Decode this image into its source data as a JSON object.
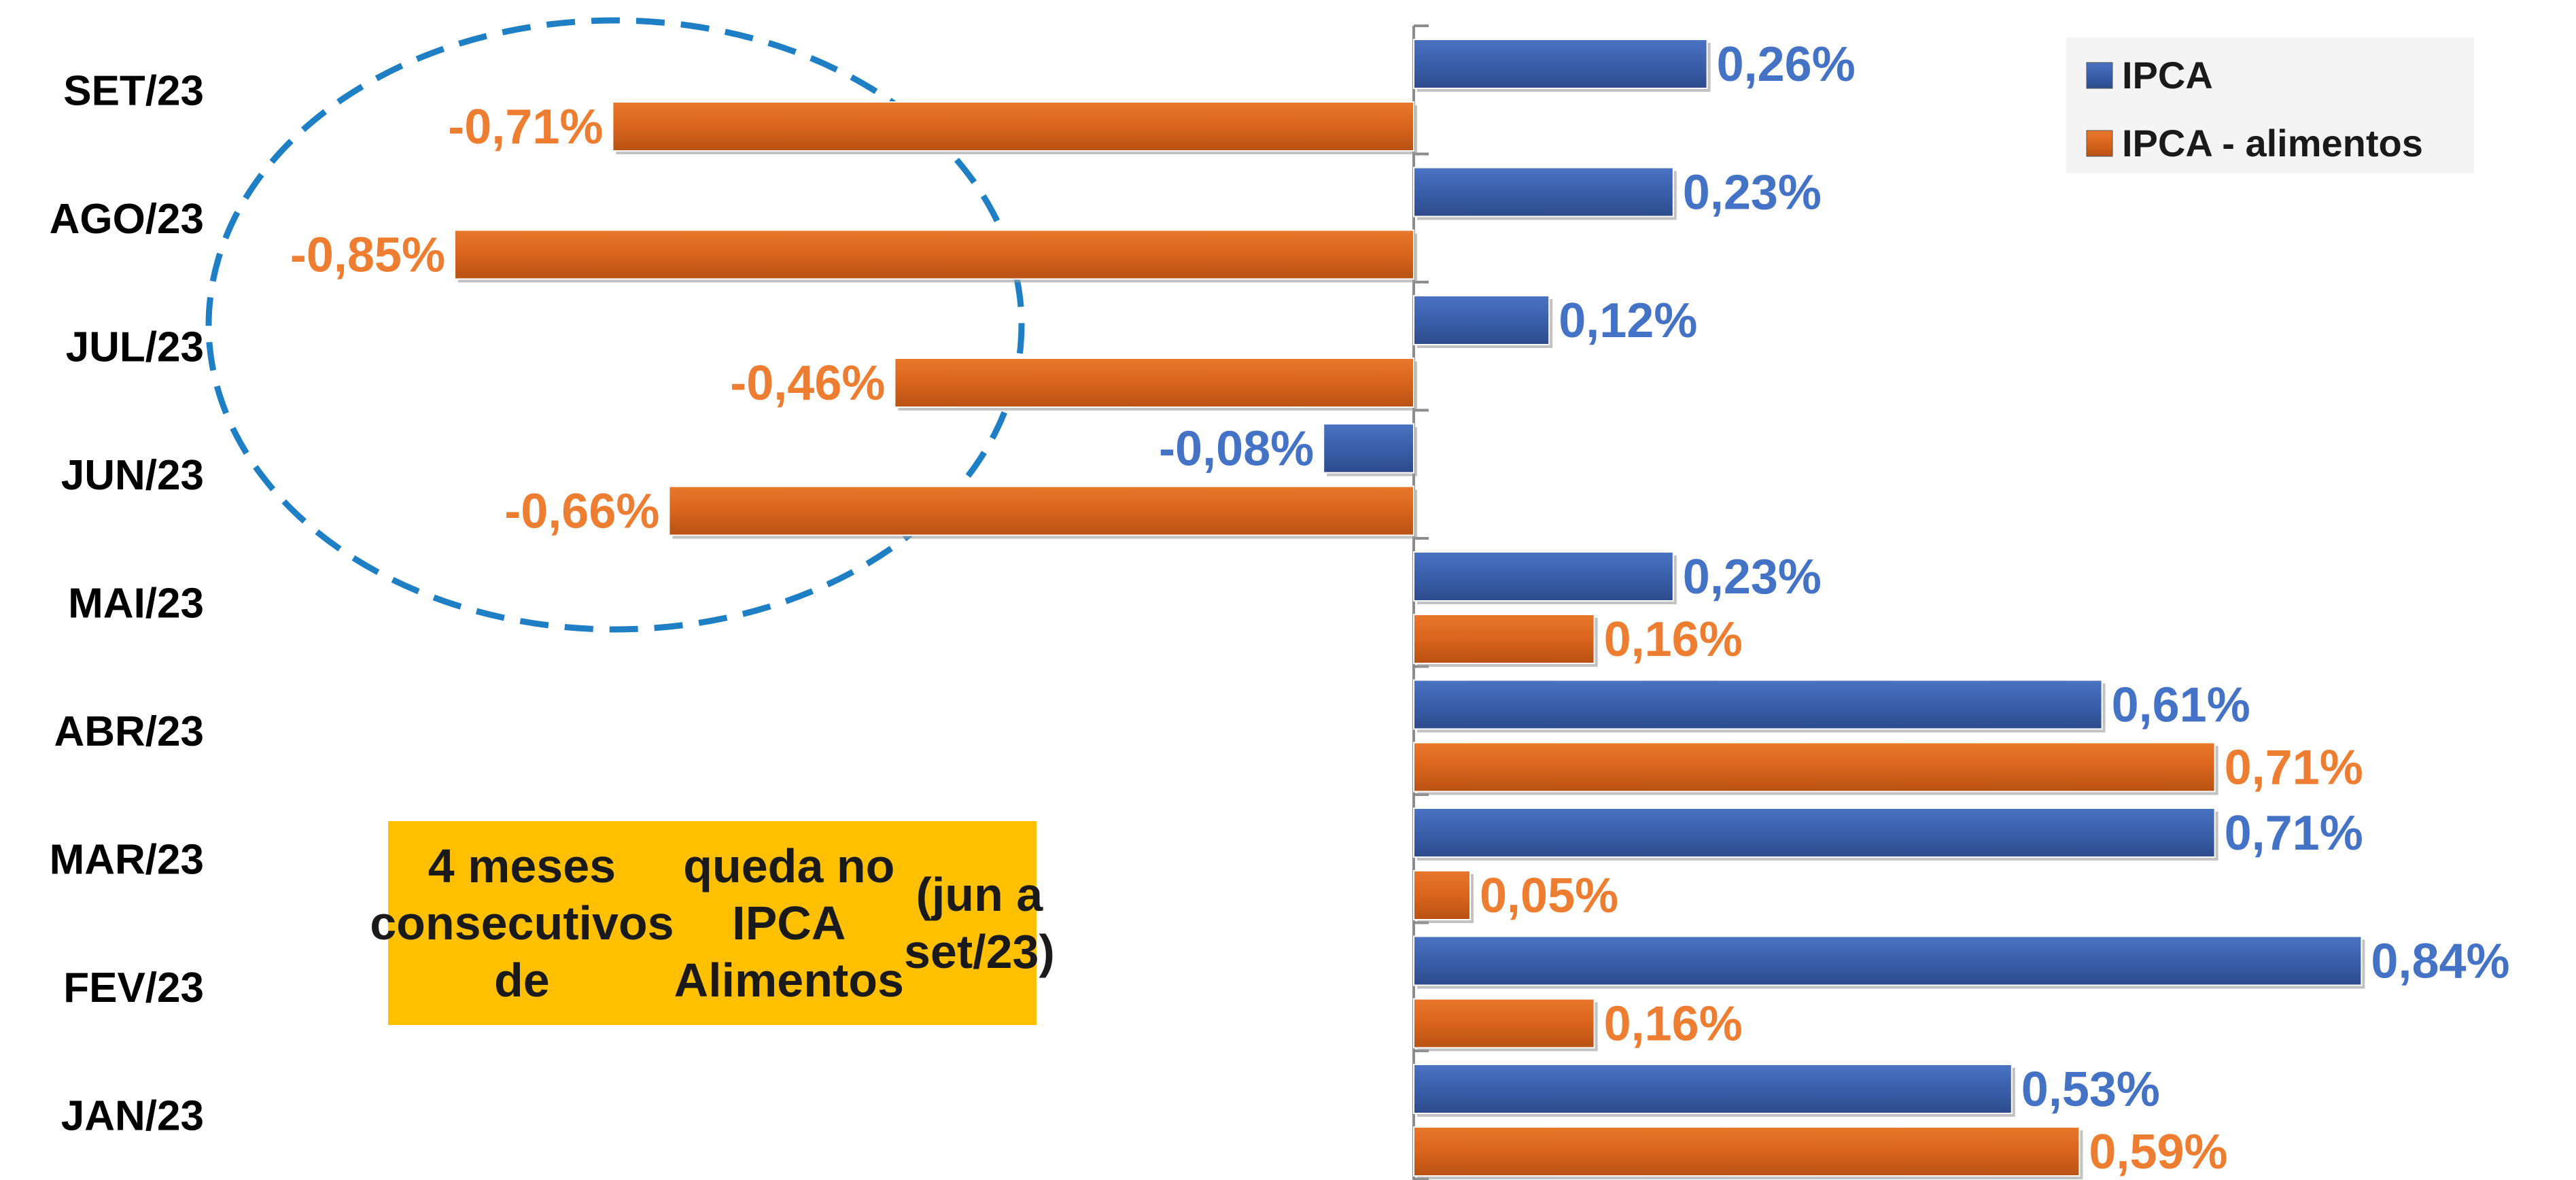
{
  "chart_data": {
    "type": "bar",
    "orientation": "horizontal",
    "categories": [
      "SET/23",
      "AGO/23",
      "JUL/23",
      "JUN/23",
      "MAI/23",
      "ABR/23",
      "MAR/23",
      "FEV/23",
      "JAN/23"
    ],
    "series": [
      {
        "name": "IPCA",
        "color": "#3a5faa",
        "values": [
          0.26,
          0.23,
          0.12,
          -0.08,
          0.23,
          0.61,
          0.71,
          0.84,
          0.53
        ],
        "labels": [
          "0,26%",
          "0,23%",
          "0,12%",
          "-0,08%",
          "0,23%",
          "0,61%",
          "0,71%",
          "0,84%",
          "0,53%"
        ]
      },
      {
        "name": "IPCA - alimentos",
        "color": "#d9641c",
        "values": [
          -0.71,
          -0.85,
          -0.46,
          -0.66,
          0.16,
          0.71,
          0.05,
          0.16,
          0.59
        ],
        "labels": [
          "-0,71%",
          "-0,85%",
          "-0,46%",
          "-0,66%",
          "0,16%",
          "0,71%",
          "0,05%",
          "0,16%",
          "0,59%"
        ]
      }
    ],
    "xlim": [
      -0.85,
      0.84
    ],
    "legend_position": "top-right",
    "label_colors": {
      "IPCA": "#4472c4",
      "IPCA - alimentos": "#ed7d31"
    },
    "highlight": {
      "shape": "dashed-ellipse",
      "color": "#1f7fc4",
      "categories": [
        "SET/23",
        "AGO/23",
        "JUL/23",
        "JUN/23"
      ]
    }
  },
  "note": {
    "lines": [
      "4 meses consecutivos de",
      "queda no IPCA Alimentos",
      "(jun a set/23)"
    ],
    "background": "#ffc000"
  }
}
